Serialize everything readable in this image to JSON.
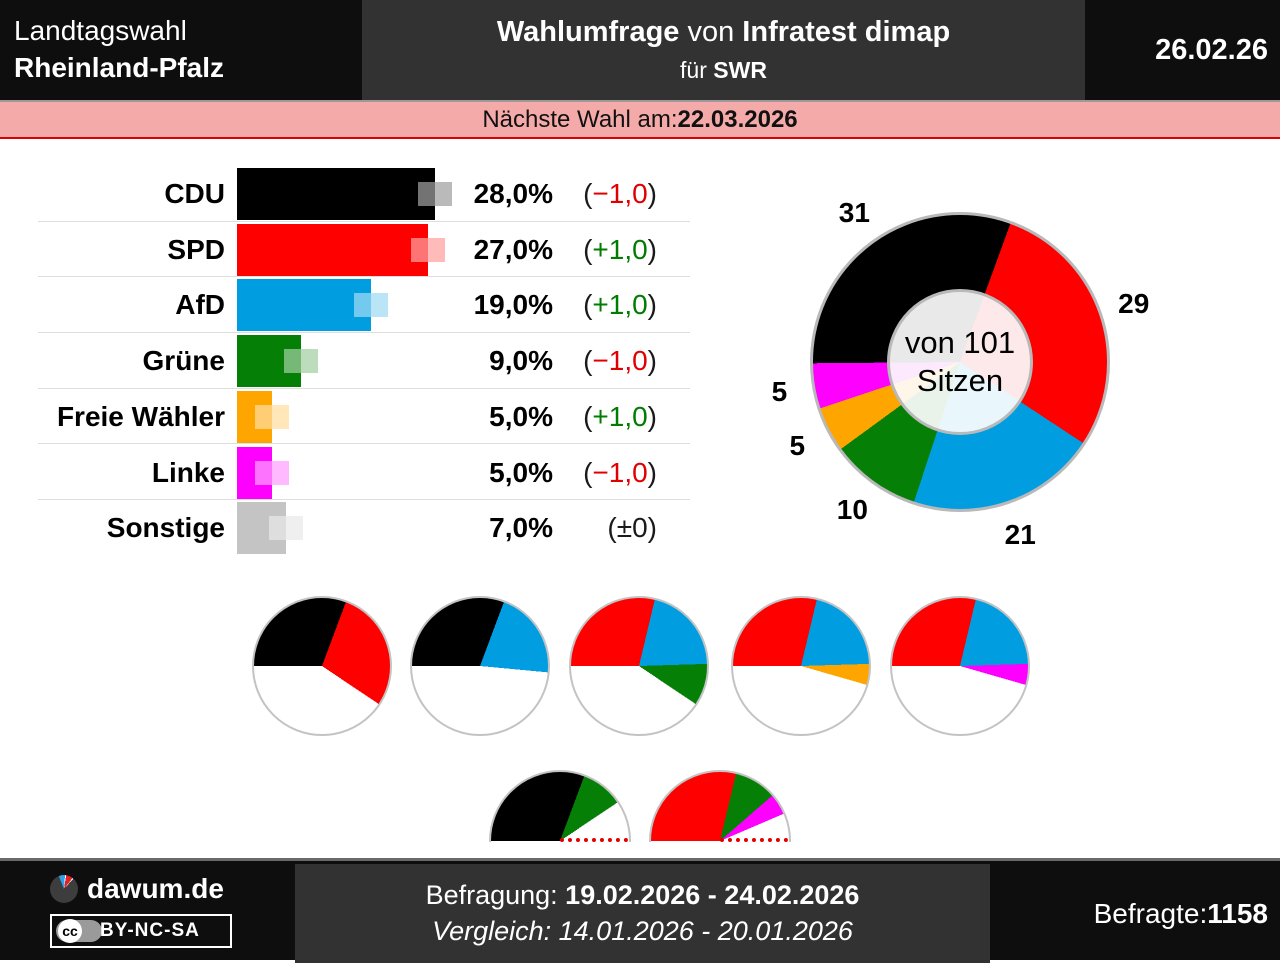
{
  "header": {
    "left_line1": "Landtagswahl",
    "left_line2": "Rheinland-Pfalz",
    "center_title_bold1": "Wahlumfrage",
    "center_title_normal": " von ",
    "center_title_bold2": "Infratest dimap",
    "center_sub_normal": "für ",
    "center_sub_bold": "SWR",
    "date": "26.02.26"
  },
  "banner": {
    "label": "Nächste Wahl am: ",
    "date": "22.03.2026"
  },
  "chart_data": {
    "type": "composite",
    "palette": {
      "CDU": "#000000",
      "SPD": "#fe0000",
      "AfD": "#009ee0",
      "Grüne": "#067f06",
      "Freie Wähler": "#ffa500",
      "Linke": "#fe00fe",
      "Sonstige": "#c4c4c4"
    },
    "trend_colors": {
      "down": "#e10000",
      "up": "#007c00",
      "zero": "#1a1a1a"
    },
    "polls": {
      "type": "bar",
      "unit": "%",
      "parties": [
        {
          "party": "CDU",
          "label": "CDU",
          "value": 28.0,
          "value_label": "28,0%",
          "change": "−1,0",
          "trend": "down"
        },
        {
          "party": "SPD",
          "label": "SPD",
          "value": 27.0,
          "value_label": "27,0%",
          "change": "+1,0",
          "trend": "up"
        },
        {
          "party": "AfD",
          "label": "AfD",
          "value": 19.0,
          "value_label": "19,0%",
          "change": "+1,0",
          "trend": "up"
        },
        {
          "party": "Grüne",
          "label": "Grüne",
          "value": 9.0,
          "value_label": "9,0%",
          "change": "−1,0",
          "trend": "down"
        },
        {
          "party": "Freie Wähler",
          "label": "Freie Wähler",
          "value": 5.0,
          "value_label": "5,0%",
          "change": "+1,0",
          "trend": "up"
        },
        {
          "party": "Linke",
          "label": "Linke",
          "value": 5.0,
          "value_label": "5,0%",
          "change": "−1,0",
          "trend": "down"
        },
        {
          "party": "Sonstige",
          "label": "Sonstige",
          "value": 7.0,
          "value_label": "7,0%",
          "change": "±0",
          "trend": "zero"
        }
      ]
    },
    "seats": {
      "type": "donut",
      "total": 101,
      "center_line1": "von 101",
      "center_line2": "Sitzen",
      "segments": [
        {
          "party": "CDU",
          "seats": 31,
          "label": "31"
        },
        {
          "party": "SPD",
          "seats": 29,
          "label": "29"
        },
        {
          "party": "AfD",
          "seats": 21,
          "label": "21"
        },
        {
          "party": "Grüne",
          "seats": 10,
          "label": "10"
        },
        {
          "party": "Freie Wähler",
          "seats": 5,
          "label": "5"
        },
        {
          "party": "Linke",
          "seats": 5,
          "label": "5"
        }
      ]
    },
    "coalitions": {
      "type": "pie",
      "items": [
        {
          "parties": [
            "CDU",
            "SPD"
          ]
        },
        {
          "parties": [
            "CDU",
            "AfD"
          ]
        },
        {
          "parties": [
            "SPD",
            "AfD",
            "Grüne"
          ]
        },
        {
          "parties": [
            "SPD",
            "AfD",
            "Freie Wähler"
          ]
        },
        {
          "parties": [
            "SPD",
            "AfD",
            "Linke"
          ]
        }
      ]
    },
    "minority_coalitions": {
      "type": "half-pie",
      "majority_marker_color": "#e10000",
      "items": [
        {
          "parties": [
            "CDU",
            "Grüne"
          ]
        },
        {
          "parties": [
            "SPD",
            "Grüne",
            "Linke"
          ]
        }
      ]
    }
  },
  "footer": {
    "logo_text": "dawum.de",
    "license_cc": "cc",
    "license": "BY-NC-SA",
    "survey_label": "Befragung: ",
    "survey_dates": "19.02.2026 - 24.02.2026",
    "comparison_label": "Vergleich: ",
    "comparison_dates": "14.01.2026 - 20.01.2026",
    "respondents_label": "Befragte: ",
    "respondents_value": "1158"
  }
}
